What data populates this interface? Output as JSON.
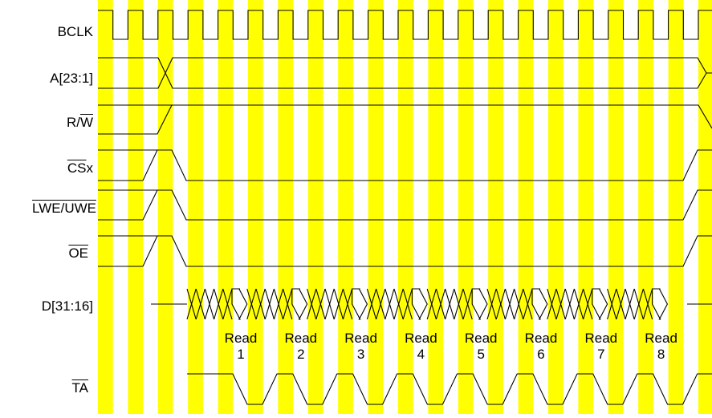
{
  "signals": {
    "bclk": "BCLK",
    "addr": "A[23:1]",
    "rw_r": "R/",
    "rw_w": "W",
    "csx_cs": "CS",
    "csx_x": "x",
    "lwe": "LWE/UWE",
    "oe": "OE",
    "data": "D[31:16]",
    "ta": "TA"
  },
  "reads": [
    {
      "label": "Read",
      "num": "1"
    },
    {
      "label": "Read",
      "num": "2"
    },
    {
      "label": "Read",
      "num": "3"
    },
    {
      "label": "Read",
      "num": "4"
    },
    {
      "label": "Read",
      "num": "5"
    },
    {
      "label": "Read",
      "num": "6"
    },
    {
      "label": "Read",
      "num": "7"
    },
    {
      "label": "Read",
      "num": "8"
    }
  ],
  "colors": {
    "clock_band": "#ffff00",
    "line": "#000000",
    "background": "#ffffff"
  }
}
